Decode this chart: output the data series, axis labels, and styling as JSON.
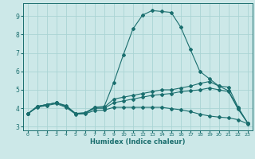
{
  "xlabel": "Humidex (Indice chaleur)",
  "bg_color": "#cce8e8",
  "grid_color": "#aad4d4",
  "line_color": "#1a6e6e",
  "xlim": [
    -0.5,
    23.5
  ],
  "ylim": [
    2.8,
    9.7
  ],
  "xticks": [
    0,
    1,
    2,
    3,
    4,
    5,
    6,
    7,
    8,
    9,
    10,
    11,
    12,
    13,
    14,
    15,
    16,
    17,
    18,
    19,
    20,
    21,
    22,
    23
  ],
  "yticks": [
    3,
    4,
    5,
    6,
    7,
    8,
    9
  ],
  "curve1_x": [
    0,
    1,
    2,
    3,
    4,
    5,
    6,
    7,
    8,
    9,
    10,
    11,
    12,
    13,
    14,
    15,
    16,
    17,
    18,
    19,
    20,
    21,
    22,
    23
  ],
  "curve1_y": [
    3.7,
    4.1,
    4.2,
    4.3,
    4.15,
    3.72,
    3.75,
    4.05,
    4.1,
    5.4,
    6.9,
    8.3,
    9.05,
    9.3,
    9.25,
    9.2,
    8.4,
    7.2,
    6.0,
    5.6,
    5.2,
    4.95,
    4.0,
    3.2
  ],
  "curve2_x": [
    0,
    1,
    2,
    3,
    4,
    5,
    6,
    7,
    8,
    9,
    10,
    11,
    12,
    13,
    14,
    15,
    16,
    17,
    18,
    19,
    20,
    21,
    22,
    23
  ],
  "curve2_y": [
    3.7,
    4.1,
    4.2,
    4.3,
    4.1,
    3.72,
    3.75,
    4.05,
    4.05,
    4.5,
    4.6,
    4.7,
    4.8,
    4.9,
    5.0,
    5.0,
    5.1,
    5.2,
    5.35,
    5.45,
    5.2,
    5.15,
    4.05,
    3.2
  ],
  "curve3_x": [
    0,
    1,
    2,
    3,
    4,
    5,
    6,
    7,
    8,
    9,
    10,
    11,
    12,
    13,
    14,
    15,
    16,
    17,
    18,
    19,
    20,
    21,
    22,
    23
  ],
  "curve3_y": [
    3.7,
    4.1,
    4.2,
    4.3,
    4.1,
    3.72,
    3.73,
    4.0,
    4.0,
    4.3,
    4.4,
    4.5,
    4.6,
    4.7,
    4.75,
    4.8,
    4.9,
    4.95,
    5.0,
    5.1,
    5.0,
    4.9,
    3.95,
    3.2
  ],
  "curve4_x": [
    0,
    1,
    2,
    3,
    4,
    5,
    6,
    7,
    8,
    9,
    10,
    11,
    12,
    13,
    14,
    15,
    16,
    17,
    18,
    19,
    20,
    21,
    22,
    23
  ],
  "curve4_y": [
    3.7,
    4.05,
    4.15,
    4.25,
    4.05,
    3.68,
    3.7,
    3.88,
    3.9,
    4.05,
    4.05,
    4.05,
    4.05,
    4.05,
    4.05,
    3.98,
    3.92,
    3.82,
    3.68,
    3.58,
    3.52,
    3.48,
    3.38,
    3.15
  ]
}
